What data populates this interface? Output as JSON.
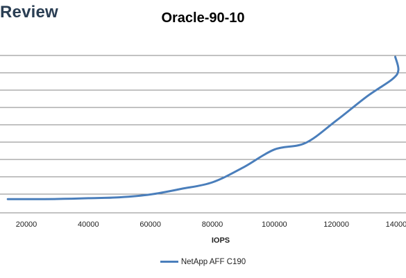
{
  "brand": {
    "text": "Review"
  },
  "chart_data": {
    "type": "line",
    "title": "Oracle-90-10",
    "xlabel": "IOPS",
    "ylabel": "",
    "x_ticks": [
      "20000",
      "40000",
      "60000",
      "80000",
      "100000",
      "120000",
      "140000"
    ],
    "xlim": [
      10000,
      140000
    ],
    "y_gridlines": 9,
    "grid": true,
    "legend_position": "bottom",
    "series": [
      {
        "name": "NetApp AFF C190",
        "color": "#4a7ebb",
        "points": [
          {
            "x": 14000,
            "y": 0.1
          },
          {
            "x": 20000,
            "y": 0.1
          },
          {
            "x": 30000,
            "y": 0.11
          },
          {
            "x": 40000,
            "y": 0.15
          },
          {
            "x": 50000,
            "y": 0.2
          },
          {
            "x": 60000,
            "y": 0.35
          },
          {
            "x": 70000,
            "y": 0.65
          },
          {
            "x": 80000,
            "y": 1.0
          },
          {
            "x": 90000,
            "y": 1.8
          },
          {
            "x": 100000,
            "y": 2.75
          },
          {
            "x": 110000,
            "y": 3.1
          },
          {
            "x": 120000,
            "y": 4.3
          },
          {
            "x": 130000,
            "y": 5.6
          },
          {
            "x": 138000,
            "y": 6.5
          },
          {
            "x": 140000,
            "y": 7.0
          },
          {
            "x": 139000,
            "y": 7.7
          }
        ]
      }
    ]
  }
}
